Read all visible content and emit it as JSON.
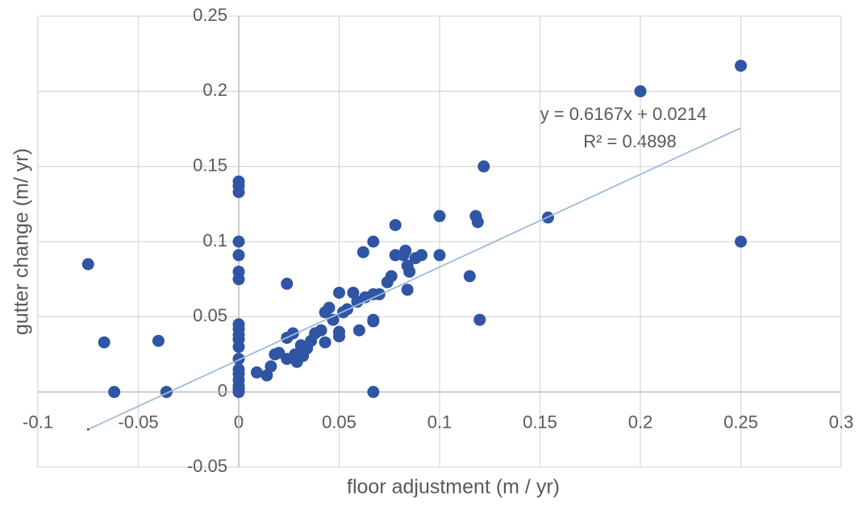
{
  "chart_data": {
    "type": "scatter",
    "x_label": "floor adjustment (m / yr)",
    "y_label": "gutter change (m/ yr)",
    "annotations": [
      "y = 0.6167x + 0.0214",
      "R² = 0.4898"
    ],
    "xlim": [
      -0.1,
      0.3
    ],
    "ylim": [
      -0.05,
      0.25
    ],
    "xticks": [
      -0.1,
      -0.05,
      0,
      0.05,
      0.1,
      0.15,
      0.2,
      0.25,
      0.3
    ],
    "yticks": [
      -0.05,
      0,
      0.05,
      0.1,
      0.15,
      0.2,
      0.25
    ],
    "grid": true,
    "color": "#2f55a4",
    "x": [
      -0.075,
      -0.067,
      -0.062,
      -0.04,
      -0.036,
      0,
      0,
      0,
      0,
      0,
      0,
      0,
      0,
      0,
      0,
      0,
      0,
      0,
      0,
      0,
      0,
      0,
      0,
      0,
      0.024,
      0.009,
      0.014,
      0.016,
      0.018,
      0.02,
      0.024,
      0.024,
      0.027,
      0.028,
      0.029,
      0.031,
      0.032,
      0.034,
      0.036,
      0.038,
      0.041,
      0.043,
      0.043,
      0.045,
      0.047,
      0.05,
      0.05,
      0.05,
      0.052,
      0.054,
      0.057,
      0.059,
      0.06,
      0.062,
      0.063,
      0.067,
      0.067,
      0.067,
      0.067,
      0.067,
      0.07,
      0.074,
      0.076,
      0.078,
      0.078,
      0.082,
      0.083,
      0.084,
      0.084,
      0.085,
      0.088,
      0.091,
      0.1,
      0.1,
      0.115,
      0.118,
      0.119,
      0.12,
      0.122,
      0.154,
      0.2,
      0.25,
      0.25
    ],
    "values": [
      0.085,
      0.033,
      0,
      0.034,
      0,
      0.14,
      0.137,
      0.133,
      0.1,
      0.091,
      0.08,
      0.075,
      0.045,
      0.042,
      0.038,
      0.035,
      0.03,
      0.022,
      0.015,
      0.012,
      0.008,
      0.004,
      0.002,
      0,
      0.072,
      0.013,
      0.011,
      0.017,
      0.025,
      0.026,
      0.022,
      0.036,
      0.039,
      0.025,
      0.02,
      0.031,
      0.024,
      0.029,
      0.034,
      0.039,
      0.041,
      0.033,
      0.053,
      0.056,
      0.048,
      0.037,
      0.04,
      0.066,
      0.053,
      0.055,
      0.066,
      0.06,
      0.041,
      0.093,
      0.063,
      0.065,
      0.1,
      0.048,
      0.047,
      0,
      0.065,
      0.073,
      0.077,
      0.111,
      0.091,
      0.091,
      0.094,
      0.084,
      0.068,
      0.08,
      0.089,
      0.091,
      0.117,
      0.091,
      0.077,
      0.117,
      0.113,
      0.048,
      0.15,
      0.116,
      0.2,
      0.217,
      0.1
    ],
    "trendline": {
      "x": [
        -0.075,
        0.25
      ],
      "values": [
        -0.0249,
        0.1756
      ],
      "color": "#9dbbd9"
    }
  }
}
